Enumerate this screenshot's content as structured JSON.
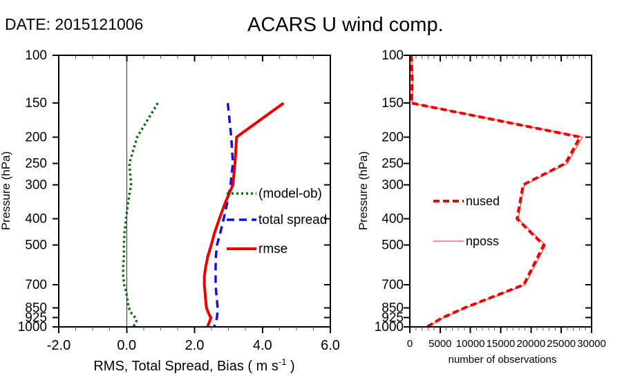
{
  "header": {
    "date": "DATE: 2015121006",
    "title": "ACARS U wind comp."
  },
  "chart_data": [
    {
      "type": "line",
      "panel": "verification-profile",
      "ylabel": "Pressure (hPa)",
      "xlabel_parts": {
        "pre": "RMS, Total Spread, Bias ( m s",
        "sup": "-1",
        "post": " )"
      },
      "xlim": [
        -2,
        6
      ],
      "xticks": [
        -2,
        0,
        2,
        4,
        6
      ],
      "xtick_labels": [
        "-2.0",
        "0.0",
        "2.0",
        "4.0",
        "6.0"
      ],
      "xminor_step": 0.5,
      "yscale": "log",
      "ylim": [
        100,
        1000
      ],
      "yticks": [
        100,
        150,
        200,
        250,
        300,
        400,
        500,
        700,
        850,
        925,
        1000
      ],
      "ytick_labels": [
        "100",
        "150",
        "200",
        "250",
        "300",
        "400",
        "500",
        "700",
        "850",
        "925",
        "1000"
      ],
      "zero_line": true,
      "grid": false,
      "legend_position": "inside-right",
      "series": [
        {
          "name": "(model-ob)",
          "color": "#007000",
          "style": "dotted",
          "width": 3.5,
          "dash": "3 4",
          "pressure": [
            150,
            200,
            250,
            300,
            350,
            400,
            450,
            500,
            550,
            600,
            650,
            700,
            750,
            800,
            850,
            900,
            925,
            950,
            1000
          ],
          "values": [
            0.92,
            0.31,
            0.08,
            0.13,
            0.04,
            -0.02,
            -0.06,
            -0.08,
            -0.08,
            -0.1,
            -0.1,
            -0.07,
            -0.01,
            0.03,
            0.06,
            0.16,
            0.26,
            0.29,
            0.2
          ]
        },
        {
          "name": "total spread",
          "color": "#0f0fee",
          "style": "dashed",
          "width": 3.5,
          "dash": "11 7",
          "pressure": [
            150,
            200,
            250,
            300,
            350,
            400,
            450,
            500,
            550,
            600,
            650,
            700,
            750,
            800,
            850,
            900,
            925,
            950,
            1000
          ],
          "values": [
            2.98,
            3.08,
            3.13,
            3.06,
            2.96,
            2.86,
            2.76,
            2.66,
            2.63,
            2.62,
            2.62,
            2.62,
            2.64,
            2.66,
            2.68,
            2.67,
            2.66,
            2.63,
            2.58
          ]
        },
        {
          "name": "rmse",
          "color": "#ee0000",
          "style": "solid",
          "width": 4,
          "dash": "",
          "pressure": [
            150,
            200,
            250,
            300,
            350,
            400,
            450,
            500,
            550,
            600,
            650,
            700,
            750,
            800,
            850,
            900,
            925,
            950,
            1000
          ],
          "values": [
            4.62,
            3.24,
            3.19,
            3.13,
            2.9,
            2.73,
            2.59,
            2.49,
            2.39,
            2.33,
            2.29,
            2.29,
            2.31,
            2.33,
            2.35,
            2.43,
            2.48,
            2.45,
            2.38
          ]
        }
      ]
    },
    {
      "type": "line",
      "panel": "observation-counts",
      "ylabel": "Pressure (hPa)",
      "xlabel_parts": {
        "pre": "number of observations",
        "sup": "",
        "post": ""
      },
      "xlim": [
        0,
        30000
      ],
      "xticks": [
        0,
        5000,
        10000,
        15000,
        20000,
        25000,
        30000
      ],
      "xtick_labels": [
        "0",
        "5000",
        "10000",
        "15000",
        "20000",
        "25000",
        "30000"
      ],
      "xminor_step": 1000,
      "yscale": "log",
      "ylim": [
        100,
        1000
      ],
      "yticks": [
        100,
        150,
        200,
        250,
        300,
        400,
        500,
        700,
        850,
        925,
        1000
      ],
      "ytick_labels": [
        "100",
        "150",
        "200",
        "250",
        "300",
        "400",
        "500",
        "700",
        "850",
        "925",
        "1000"
      ],
      "zero_line": false,
      "grid": false,
      "legend_position": "inside-left",
      "series": [
        {
          "name": "nused",
          "color": "#ee0000",
          "style": "dashed",
          "width": 4,
          "dash": "9 5",
          "pressure": [
            100,
            125,
            150,
            200,
            250,
            300,
            400,
            500,
            700,
            850,
            925,
            1000
          ],
          "values": [
            250,
            400,
            300,
            28100,
            25700,
            18700,
            17700,
            22100,
            18800,
            9100,
            5400,
            2850
          ]
        },
        {
          "name": "nposs",
          "color": "#ff4040",
          "style": "solid",
          "width": 1.3,
          "dash": "",
          "pressure": [
            100,
            125,
            150,
            200,
            250,
            300,
            400,
            500,
            700,
            850,
            925,
            1000
          ],
          "values": [
            300,
            480,
            380,
            28500,
            26000,
            18900,
            17900,
            22400,
            19000,
            9300,
            5550,
            2950
          ]
        }
      ]
    }
  ]
}
